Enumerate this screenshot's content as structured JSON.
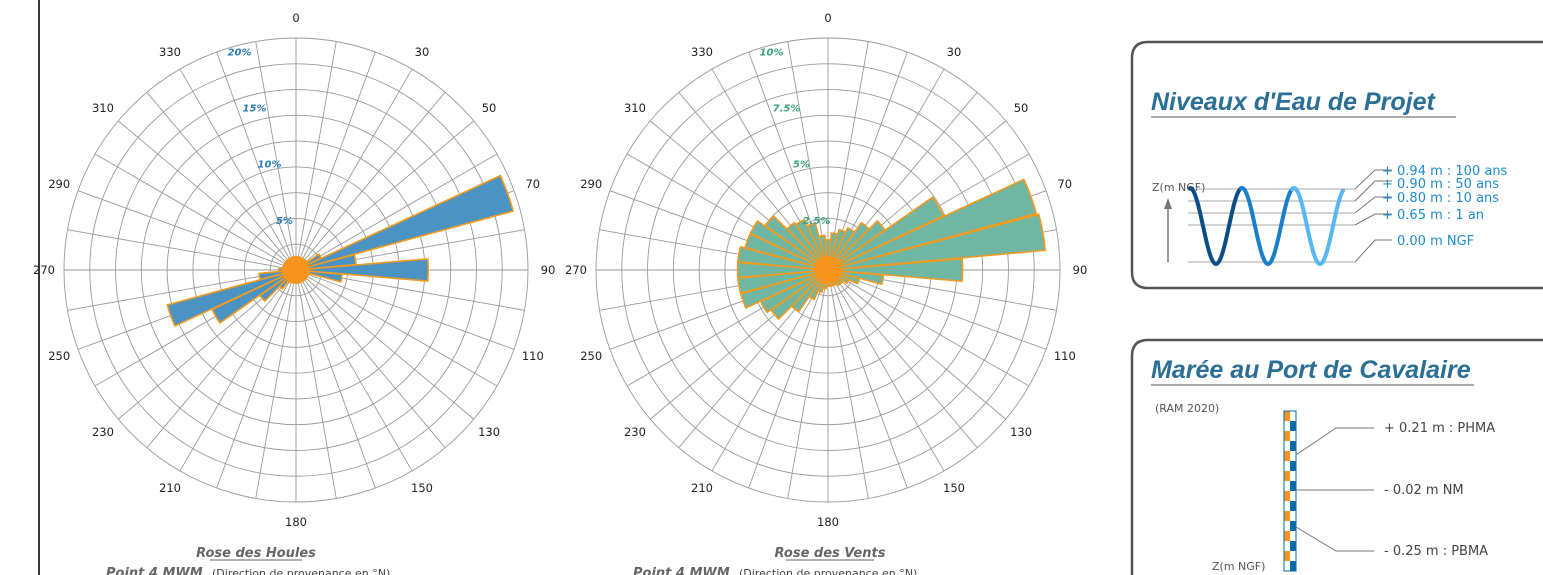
{
  "colors": {
    "houle_fill": "#4b93c3",
    "vent_fill": "#6fb6a3",
    "outline": "#f39a1e",
    "center": "#f7941d",
    "houle_pct": "#2a7bb4",
    "vent_pct": "#3aa37f",
    "title_blue": "#2b6f94",
    "wave_dark": "#0b4d86",
    "wave_mid": "#1a7fc9",
    "wave_light": "#56b7f3",
    "tide_orange": "#f7941d",
    "tide_blue": "#0a6aa8"
  },
  "direction_labels": [
    "0",
    "30",
    "50",
    "70",
    "90",
    "110",
    "130",
    "150",
    "180",
    "210",
    "230",
    "250",
    "270",
    "290",
    "310",
    "330"
  ],
  "houles": {
    "title": "Rose des Houles",
    "subtitle_bold": "Point 4 MWM",
    "subtitle_rest": "(Direction de provenance en °N)",
    "ring_labels": [
      "20%",
      "15%",
      "10%",
      "5%"
    ]
  },
  "vents": {
    "title": "Rose des Vents",
    "subtitle_bold": "Point 4 MWM",
    "subtitle_rest": "(Direction de provenance en °N)",
    "ring_labels": [
      "10%",
      "7.5%",
      "5%",
      "2.5%"
    ]
  },
  "chart_data": [
    {
      "type": "polar-bar",
      "title": "Rose des Houles",
      "direction_step_deg": 10,
      "rmax_percent": 20,
      "sectors": [
        {
          "dir": 0,
          "value": 0.3
        },
        {
          "dir": 10,
          "value": 0.2
        },
        {
          "dir": 20,
          "value": 0.2
        },
        {
          "dir": 30,
          "value": 0.2
        },
        {
          "dir": 40,
          "value": 0.3
        },
        {
          "dir": 50,
          "value": 0.6
        },
        {
          "dir": 60,
          "value": 2.4
        },
        {
          "dir": 70,
          "value": 19.4
        },
        {
          "dir": 80,
          "value": 5.2
        },
        {
          "dir": 90,
          "value": 11.4
        },
        {
          "dir": 100,
          "value": 4.0
        },
        {
          "dir": 110,
          "value": 0.8
        },
        {
          "dir": 120,
          "value": 0.3
        },
        {
          "dir": 130,
          "value": 0.2
        },
        {
          "dir": 140,
          "value": 0.2
        },
        {
          "dir": 150,
          "value": 0.2
        },
        {
          "dir": 160,
          "value": 0.2
        },
        {
          "dir": 170,
          "value": 0.2
        },
        {
          "dir": 180,
          "value": 0.2
        },
        {
          "dir": 190,
          "value": 0.3
        },
        {
          "dir": 200,
          "value": 0.5
        },
        {
          "dir": 210,
          "value": 1.2
        },
        {
          "dir": 220,
          "value": 2.0
        },
        {
          "dir": 230,
          "value": 3.8
        },
        {
          "dir": 240,
          "value": 8.0
        },
        {
          "dir": 250,
          "value": 11.5
        },
        {
          "dir": 260,
          "value": 3.2
        },
        {
          "dir": 270,
          "value": 1.5
        },
        {
          "dir": 280,
          "value": 0.6
        },
        {
          "dir": 290,
          "value": 0.4
        },
        {
          "dir": 300,
          "value": 0.3
        },
        {
          "dir": 310,
          "value": 0.3
        },
        {
          "dir": 320,
          "value": 0.3
        },
        {
          "dir": 330,
          "value": 0.3
        },
        {
          "dir": 340,
          "value": 0.3
        },
        {
          "dir": 350,
          "value": 0.3
        }
      ]
    },
    {
      "type": "polar-bar",
      "title": "Rose des Vents",
      "direction_step_deg": 10,
      "rmax_percent": 10,
      "sectors": [
        {
          "dir": 0,
          "value": 1.3
        },
        {
          "dir": 10,
          "value": 1.6
        },
        {
          "dir": 20,
          "value": 1.8
        },
        {
          "dir": 30,
          "value": 2.0
        },
        {
          "dir": 40,
          "value": 2.5
        },
        {
          "dir": 50,
          "value": 3.0
        },
        {
          "dir": 60,
          "value": 5.5
        },
        {
          "dir": 70,
          "value": 9.3
        },
        {
          "dir": 80,
          "value": 9.4
        },
        {
          "dir": 90,
          "value": 5.8
        },
        {
          "dir": 100,
          "value": 2.4
        },
        {
          "dir": 110,
          "value": 1.4
        },
        {
          "dir": 120,
          "value": 1.0
        },
        {
          "dir": 130,
          "value": 0.8
        },
        {
          "dir": 140,
          "value": 0.8
        },
        {
          "dir": 150,
          "value": 0.7
        },
        {
          "dir": 160,
          "value": 0.7
        },
        {
          "dir": 170,
          "value": 0.7
        },
        {
          "dir": 180,
          "value": 0.7
        },
        {
          "dir": 190,
          "value": 0.8
        },
        {
          "dir": 200,
          "value": 1.0
        },
        {
          "dir": 210,
          "value": 1.4
        },
        {
          "dir": 220,
          "value": 2.2
        },
        {
          "dir": 230,
          "value": 3.0
        },
        {
          "dir": 240,
          "value": 3.2
        },
        {
          "dir": 250,
          "value": 3.9
        },
        {
          "dir": 260,
          "value": 3.9
        },
        {
          "dir": 270,
          "value": 3.9
        },
        {
          "dir": 280,
          "value": 3.9
        },
        {
          "dir": 290,
          "value": 3.7
        },
        {
          "dir": 300,
          "value": 3.7
        },
        {
          "dir": 310,
          "value": 3.3
        },
        {
          "dir": 320,
          "value": 2.5
        },
        {
          "dir": 330,
          "value": 2.4
        },
        {
          "dir": 340,
          "value": 2.1
        },
        {
          "dir": 350,
          "value": 1.5
        }
      ]
    }
  ],
  "niveaux": {
    "title": "Niveaux d'Eau de Projet",
    "axis_label": "Z(m NGF)",
    "levels": [
      "+ 0.94 m : 100 ans",
      "+ 0.90 m : 50 ans",
      "+ 0.80 m : 10 ans",
      "+ 0.65 m : 1 an",
      "0.00 m NGF"
    ]
  },
  "maree": {
    "title": "Marée au Port de Cavalaire",
    "source": "(RAM 2020)",
    "axis_label": "Z(m NGF)",
    "levels": [
      "+ 0.21 m : PHMA",
      "- 0.02 m NM",
      "- 0.25 m : PBMA"
    ]
  }
}
